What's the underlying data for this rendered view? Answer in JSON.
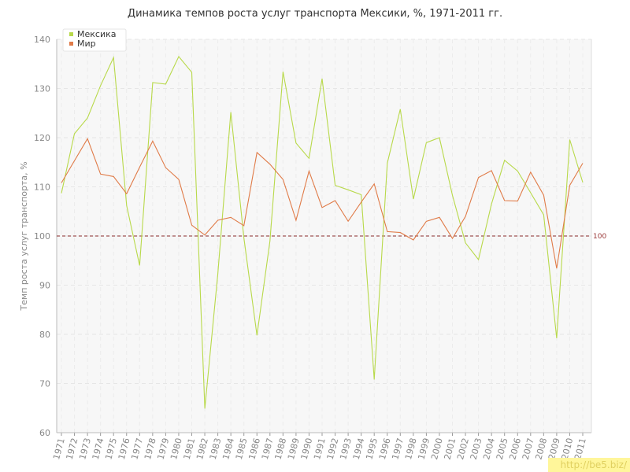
{
  "title": "Динамика темпов роста услуг транспорта Мексики, %, 1971-2011 гг.",
  "watermark": "http://be5.biz/",
  "chart_data": {
    "type": "line",
    "title": "Динамика темпов роста услуг транспорта Мексики, %, 1971-2011 гг.",
    "xlabel": "",
    "ylabel": "Темп роста услуг транспорта, %",
    "ylim": [
      60,
      140
    ],
    "yticks": [
      60,
      70,
      80,
      90,
      100,
      110,
      120,
      130,
      140
    ],
    "grid": true,
    "legend": "top-left",
    "categories": [
      "1971",
      "1972",
      "1973",
      "1974",
      "1975",
      "1976",
      "1977",
      "1978",
      "1979",
      "1980",
      "1981",
      "1982",
      "1983",
      "1984",
      "1985",
      "1986",
      "1987",
      "1988",
      "1989",
      "1990",
      "1991",
      "1992",
      "1993",
      "1994",
      "1995",
      "1996",
      "1997",
      "1998",
      "1999",
      "2000",
      "2001",
      "2002",
      "2003",
      "2004",
      "2005",
      "2006",
      "2007",
      "2008",
      "2009",
      "2010",
      "2011"
    ],
    "series": [
      {
        "name": "Мексика",
        "color": "#b8d94a",
        "values": [
          108.7,
          120.8,
          124.0,
          130.6,
          136.3,
          106.2,
          94.0,
          131.2,
          130.9,
          136.5,
          133.3,
          64.9,
          92.3,
          125.2,
          99.6,
          79.8,
          99.0,
          133.4,
          118.9,
          115.8,
          132.0,
          110.3,
          109.4,
          108.4,
          70.8,
          114.8,
          125.8,
          107.5,
          119.0,
          120.0,
          108.3,
          98.6,
          95.2,
          106.5,
          115.4,
          113.2,
          108.8,
          104.3,
          79.2,
          119.6,
          110.9
        ]
      },
      {
        "name": "Мир",
        "color": "#e07b48",
        "values": [
          110.8,
          115.3,
          119.8,
          112.6,
          112.1,
          108.6,
          114.0,
          119.3,
          113.9,
          111.5,
          102.2,
          100.2,
          103.2,
          103.8,
          102.1,
          117.0,
          114.6,
          111.5,
          103.2,
          113.2,
          105.8,
          107.2,
          103.0,
          106.9,
          110.6,
          100.9,
          100.7,
          99.2,
          103.0,
          103.8,
          99.5,
          104.0,
          111.9,
          113.3,
          107.2,
          107.1,
          113.0,
          108.3,
          93.4,
          110.3,
          114.8
        ]
      }
    ],
    "reference_line": {
      "value": 100,
      "label": "100",
      "color": "#8a2a2a"
    }
  }
}
